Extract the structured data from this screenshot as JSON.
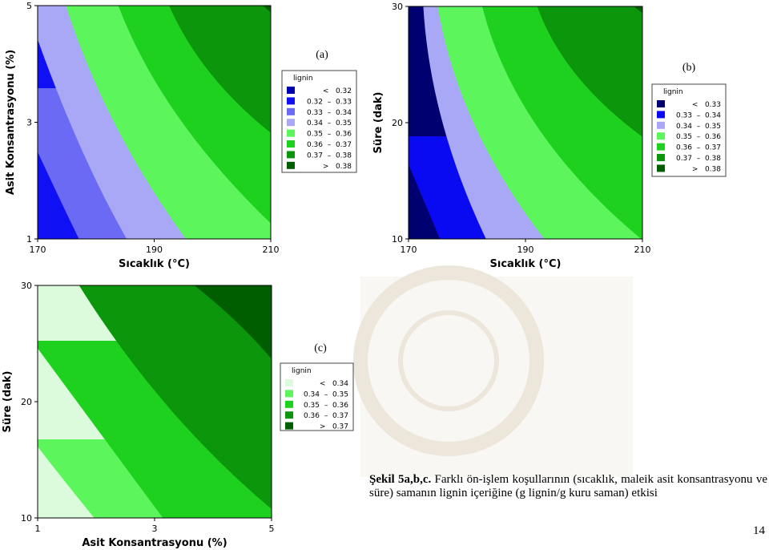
{
  "figures": [
    {
      "label": "(a)",
      "xlabel": "Sıcaklık (°C)",
      "ylabel": "Asit Konsantrasyonu (%)",
      "xlim": [
        170,
        210
      ],
      "xticks": [
        170,
        190,
        210
      ],
      "ylim": [
        1,
        5
      ],
      "yticks": [
        1,
        3,
        5
      ],
      "legend_title": "lignin",
      "levels": [
        {
          "text": "<   0.32",
          "color": "#0000b0"
        },
        {
          "text": "0.32  –  0.33",
          "color": "#1010f4"
        },
        {
          "text": "0.33  –  0.34",
          "color": "#6a6af4"
        },
        {
          "text": "0.34  –  0.35",
          "color": "#a8a8f6"
        },
        {
          "text": "0.35  –  0.36",
          "color": "#5cf55c"
        },
        {
          "text": "0.36  –  0.37",
          "color": "#1fd11f"
        },
        {
          "text": "0.37  –  0.38",
          "color": "#0c960c"
        },
        {
          "text": ">   0.38",
          "color": "#005e00"
        }
      ]
    },
    {
      "label": "(b)",
      "xlabel": "Sıcaklık (°C)",
      "ylabel": "Süre (dak)",
      "xlim": [
        170,
        210
      ],
      "xticks": [
        170,
        190,
        210
      ],
      "ylim": [
        10,
        30
      ],
      "yticks": [
        10,
        20,
        30
      ],
      "legend_title": "lignin",
      "levels": [
        {
          "text": "<   0.33",
          "color": "#000070"
        },
        {
          "text": "0.33  –  0.34",
          "color": "#0a0af2"
        },
        {
          "text": "0.34  –  0.35",
          "color": "#a8a8f6"
        },
        {
          "text": "0.35  –  0.36",
          "color": "#5cf55c"
        },
        {
          "text": "0.36  –  0.37",
          "color": "#1fd11f"
        },
        {
          "text": "0.37  –  0.38",
          "color": "#0c960c"
        },
        {
          "text": ">   0.38",
          "color": "#005e00"
        }
      ]
    },
    {
      "label": "(c)",
      "xlabel": "Asit Konsantrasyonu (%)",
      "ylabel": "Süre (dak)",
      "xlim": [
        1,
        5
      ],
      "xticks": [
        1,
        3,
        5
      ],
      "ylim": [
        10,
        30
      ],
      "yticks": [
        10,
        20,
        30
      ],
      "legend_title": "lignin",
      "levels": [
        {
          "text": "<   0.34",
          "color": "#dcfadc"
        },
        {
          "text": "0.34  –  0.35",
          "color": "#5cf55c"
        },
        {
          "text": "0.35  –  0.36",
          "color": "#1fd11f"
        },
        {
          "text": "0.36  –  0.37",
          "color": "#0c960c"
        },
        {
          "text": ">   0.37",
          "color": "#005e00"
        }
      ]
    }
  ],
  "caption": {
    "label": "Şekil 5a,b,c.",
    "text": "Farklı ön-işlem koşullarının (sıcaklık, maleik asit konsantrasyonu ve süre) samanın lignin içeriğine (g lignin/g kuru saman) etkisi"
  },
  "page_number": "14"
}
